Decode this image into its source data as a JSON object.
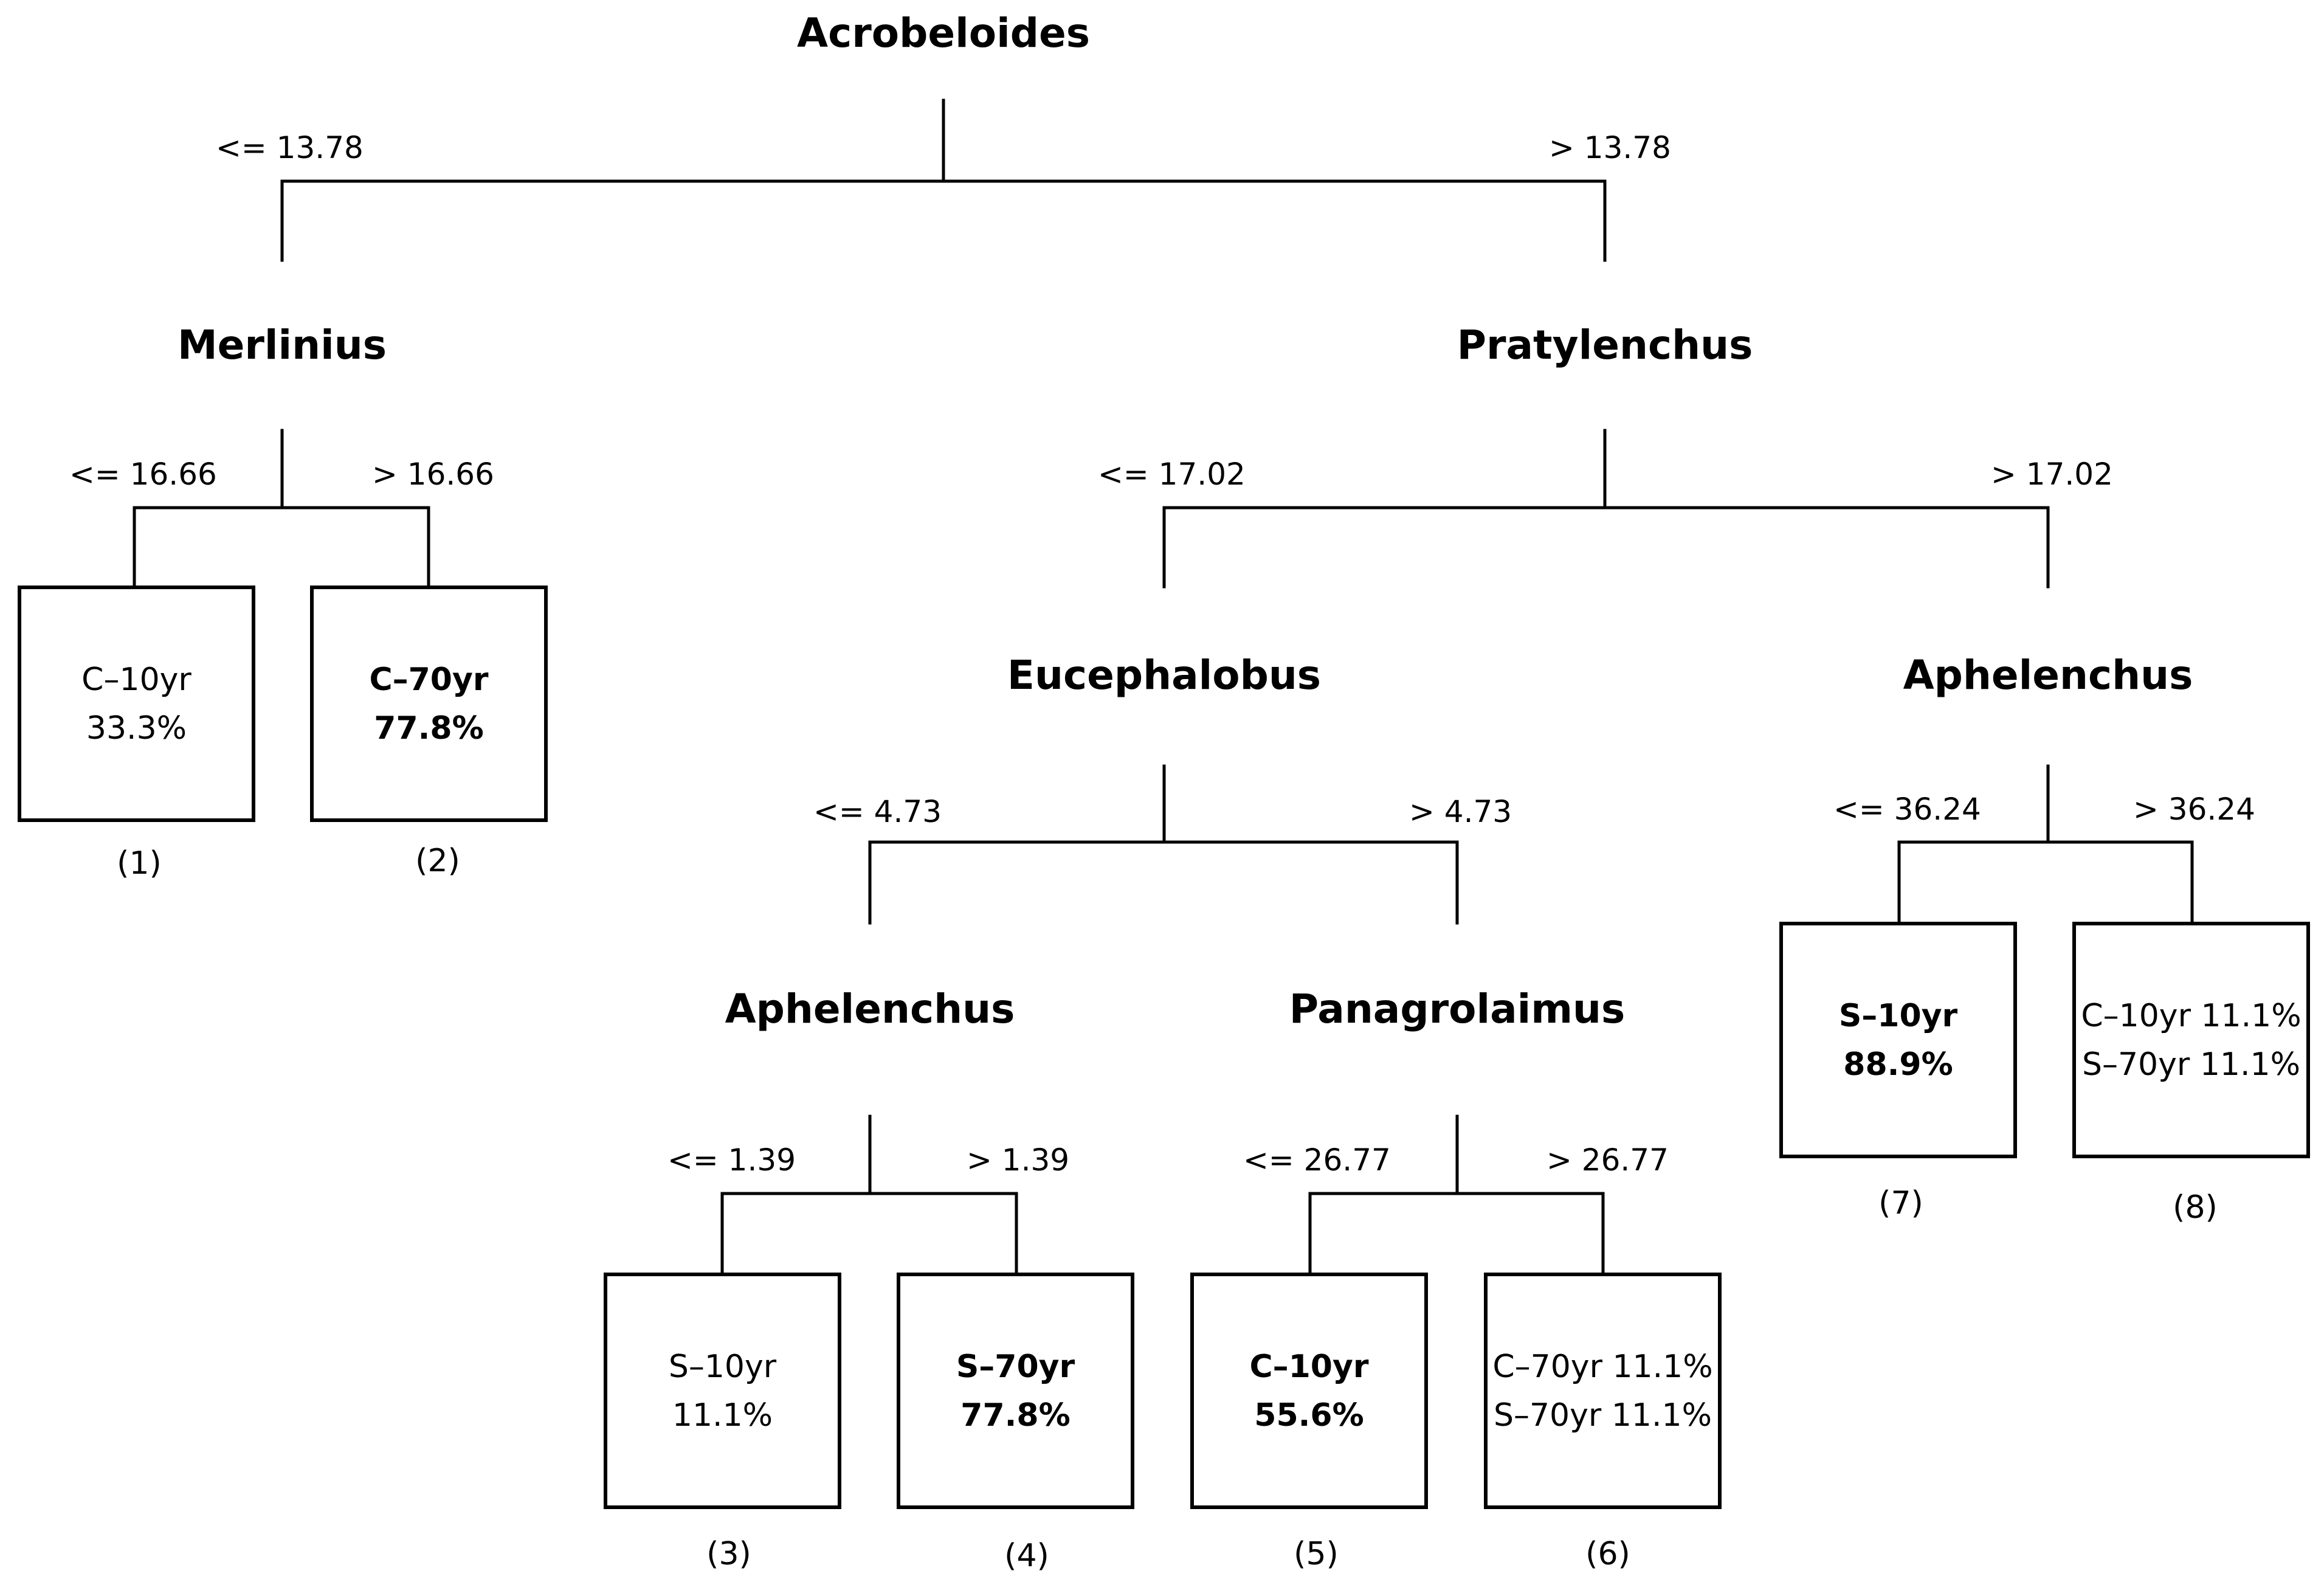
{
  "tree": {
    "nodes": {
      "acrobeloides": "Acrobeloides",
      "merlinius": "Merlinius",
      "pratylenchus": "Pratylenchus",
      "eucephalobus": "Eucephalobus",
      "aphelenchus_right": "Aphelenchus",
      "aphelenchus_left": "Aphelenchus",
      "panagrolaimus": "Panagrolaimus"
    },
    "splits": {
      "acrobeloides_le": "<= 13.78",
      "acrobeloides_gt": "> 13.78",
      "merlinius_le": "<= 16.66",
      "merlinius_gt": "> 16.66",
      "pratylenchus_le": "<= 17.02",
      "pratylenchus_gt": "> 17.02",
      "eucephalobus_le": "<= 4.73",
      "eucephalobus_gt": "> 4.73",
      "aphelenchus_right_le": "<= 36.24",
      "aphelenchus_right_gt": "> 36.24",
      "aphelenchus_left_le": "<= 1.39",
      "aphelenchus_left_gt": "> 1.39",
      "panagrolaimus_le": "<= 26.77",
      "panagrolaimus_gt": "> 26.77"
    },
    "leaves": [
      {
        "number": "(1)",
        "bold": false,
        "lines": [
          "C–10yr",
          "33.3%"
        ]
      },
      {
        "number": "(2)",
        "bold": true,
        "lines": [
          "C–70yr",
          "77.8%"
        ]
      },
      {
        "number": "(3)",
        "bold": false,
        "lines": [
          "S–10yr",
          "11.1%"
        ]
      },
      {
        "number": "(4)",
        "bold": true,
        "lines": [
          "S–70yr",
          "77.8%"
        ]
      },
      {
        "number": "(5)",
        "bold": true,
        "lines": [
          "C–10yr",
          "55.6%"
        ]
      },
      {
        "number": "(6)",
        "bold": false,
        "lines": [
          "C–70yr 11.1%",
          "S–70yr 11.1%"
        ]
      },
      {
        "number": "(7)",
        "bold": true,
        "lines": [
          "S–10yr",
          "88.9%"
        ]
      },
      {
        "number": "(8)",
        "bold": false,
        "lines": [
          "C–10yr 11.1%",
          "S–70yr 11.1%"
        ]
      }
    ]
  }
}
